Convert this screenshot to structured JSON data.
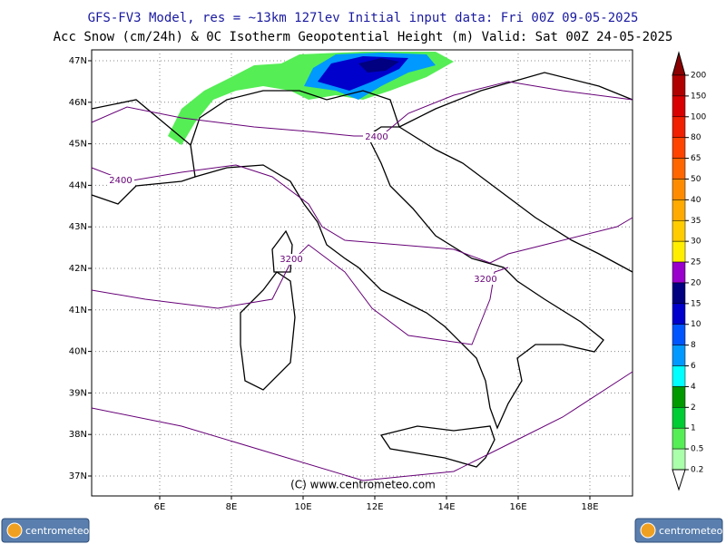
{
  "header": {
    "line1": "GFS-FV3 Model, res = ~13km 127lev   Initial input data: Fri 00Z 09-05-2025",
    "line2": "Acc Snow (cm/24h) & 0C Isotherm Geopotential Height (m)  Valid: Sat 00Z 24-05-2025"
  },
  "map": {
    "lat_labels": [
      "47N",
      "46N",
      "45N",
      "44N",
      "43N",
      "42N",
      "41N",
      "40N",
      "39N",
      "38N",
      "37N"
    ],
    "lon_labels": [
      "6E",
      "8E",
      "10E",
      "12E",
      "14E",
      "16E",
      "18E"
    ],
    "contour_labels": [
      "2400",
      "2400",
      "3200",
      "3200"
    ],
    "copyright": "(C) www.centrometeo.com"
  },
  "legend": {
    "labels": [
      "200",
      "150",
      "100",
      "80",
      "65",
      "50",
      "40",
      "35",
      "30",
      "25",
      "20",
      "15",
      "10",
      "8",
      "6",
      "4",
      "2",
      "1",
      "0.5",
      "0.2"
    ],
    "colors": [
      "#8b0000",
      "#b00000",
      "#d80000",
      "#f02000",
      "#ff4400",
      "#ff6600",
      "#ff8c00",
      "#ffaa00",
      "#ffcc00",
      "#ffee00",
      "#9900cc",
      "#000080",
      "#0000cc",
      "#0055ff",
      "#0099ff",
      "#00ffff",
      "#009900",
      "#00cc33",
      "#55ee55",
      "#aaffaa",
      "#e6ffe6"
    ]
  },
  "logos": [
    "centrometeo",
    "centrometeo"
  ]
}
